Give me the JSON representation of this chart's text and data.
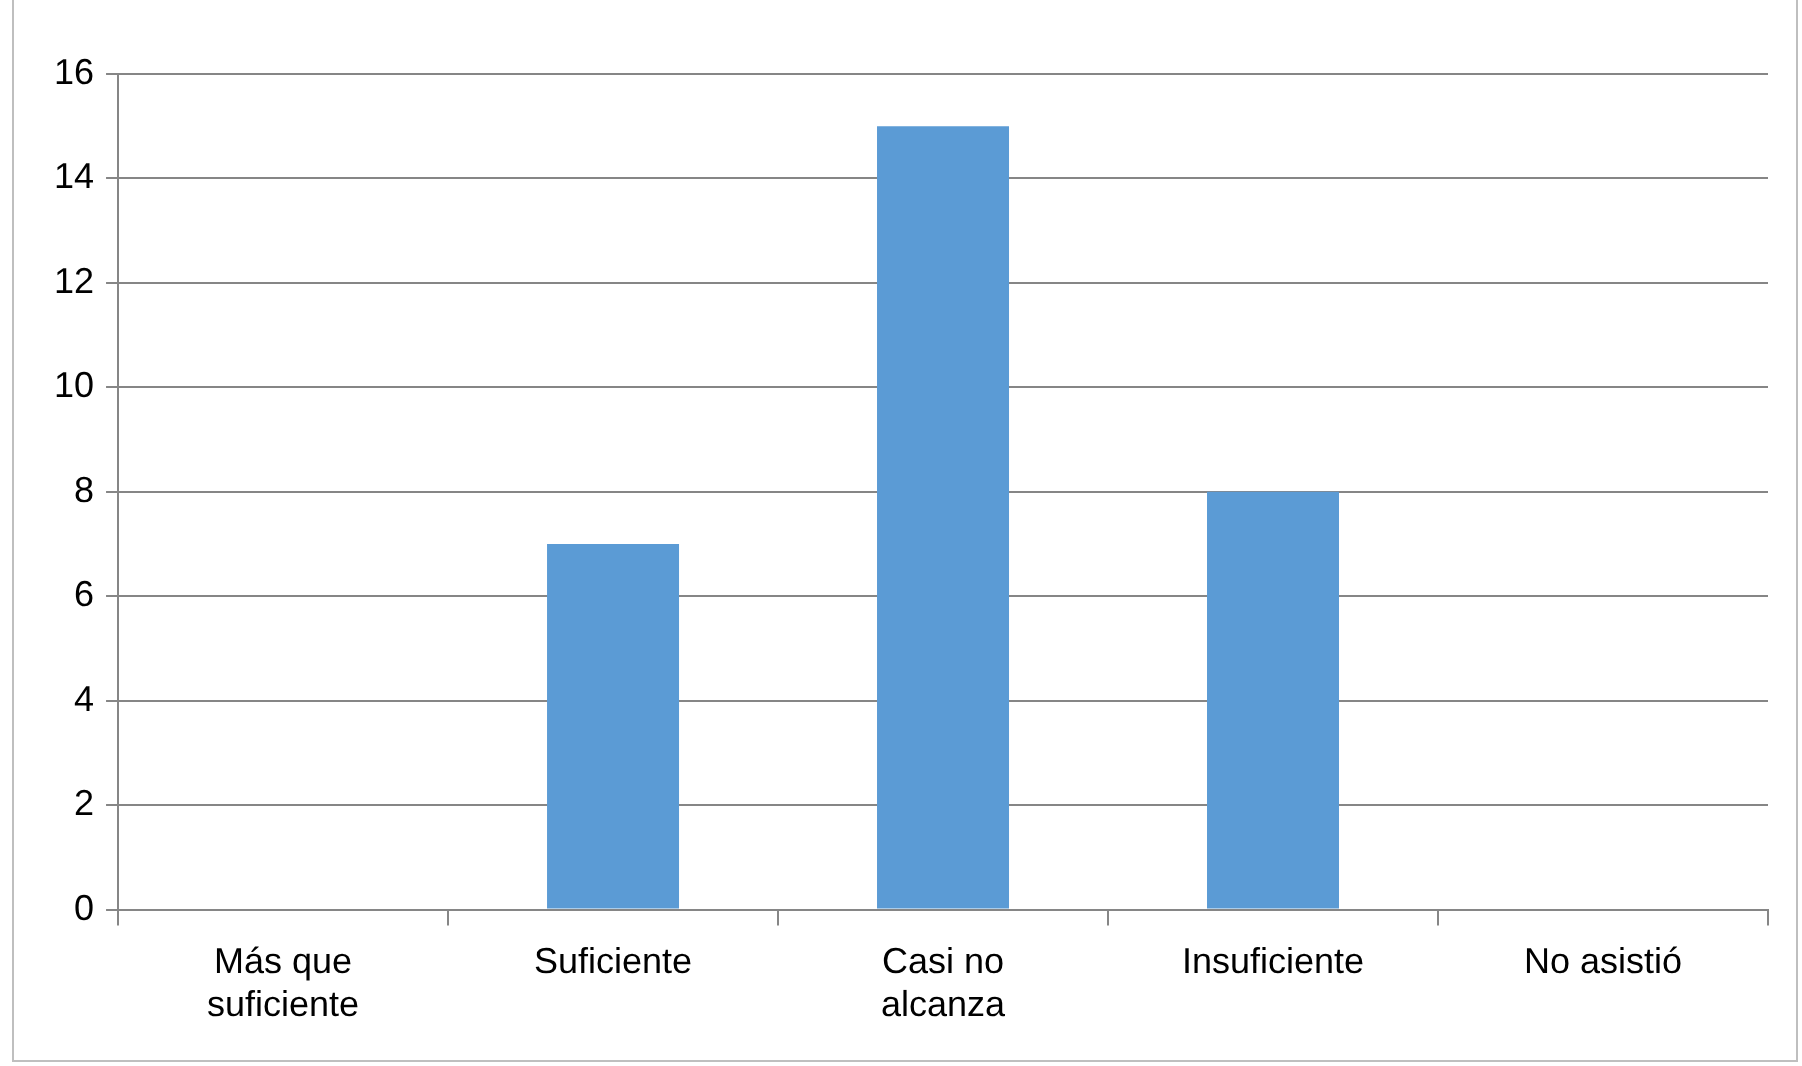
{
  "chart_data": {
    "type": "bar",
    "categories": [
      "Más que suficiente",
      "Suficiente",
      "Casi no alcanza",
      "Insuficiente",
      "No asistió"
    ],
    "values": [
      0,
      7,
      15,
      8,
      0
    ],
    "color": "#5b9bd5",
    "ylim": [
      0,
      16
    ],
    "yticks": [
      0,
      2,
      4,
      6,
      8,
      10,
      12,
      14,
      16
    ],
    "grid": "y",
    "legend": false
  }
}
